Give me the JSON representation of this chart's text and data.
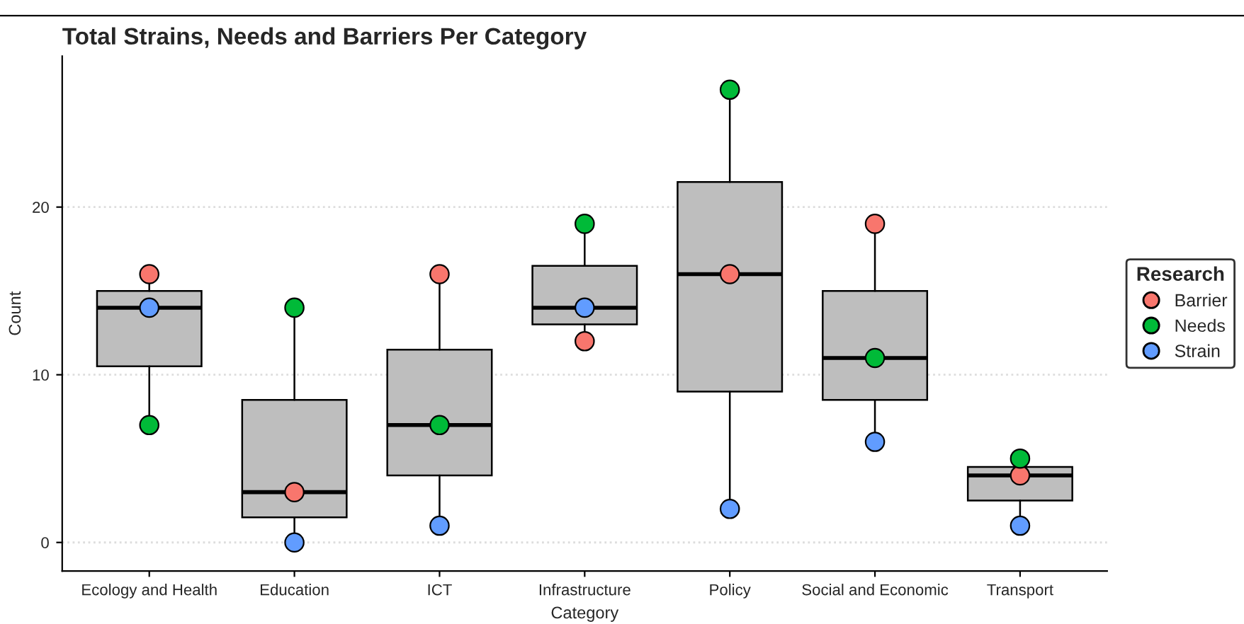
{
  "chart_data": {
    "type": "box",
    "title": "Total Strains, Needs and Barriers Per Category",
    "xlabel": "Category",
    "ylabel": "Count",
    "legend_title": "Research",
    "legend": "right",
    "grid": "y",
    "marker": "circle",
    "categories": [
      "Ecology and Health",
      "Education",
      "ICT",
      "Infrastructure",
      "Policy",
      "Social and Economic",
      "Transport"
    ],
    "ylim": [
      -1.7,
      29
    ],
    "yticks": [
      0,
      10,
      20
    ],
    "boxes": [
      {
        "low": 7,
        "q1": 10.5,
        "median": 14,
        "q3": 15,
        "high": 16
      },
      {
        "low": 0,
        "q1": 1.5,
        "median": 3,
        "q3": 8.5,
        "high": 14
      },
      {
        "low": 1,
        "q1": 4,
        "median": 7,
        "q3": 11.5,
        "high": 16
      },
      {
        "low": 12,
        "q1": 13,
        "median": 14,
        "q3": 16.5,
        "high": 19
      },
      {
        "low": 2,
        "q1": 9,
        "median": 16,
        "q3": 21.5,
        "high": 27
      },
      {
        "low": 6,
        "q1": 8.5,
        "median": 11,
        "q3": 15,
        "high": 19
      },
      {
        "low": 1,
        "q1": 2.5,
        "median": 4,
        "q3": 4.5,
        "high": 5
      }
    ],
    "series": [
      {
        "type": "scatter",
        "name": "Barrier",
        "color": "#f8766d",
        "x": [
          "Ecology and Health",
          "Education",
          "ICT",
          "Infrastructure",
          "Policy",
          "Social and Economic",
          "Transport"
        ],
        "values": [
          16,
          3,
          16,
          12,
          16,
          19,
          4
        ]
      },
      {
        "type": "scatter",
        "name": "Needs",
        "color": "#00ba38",
        "x": [
          "Ecology and Health",
          "Education",
          "ICT",
          "Infrastructure",
          "Policy",
          "Social and Economic",
          "Transport"
        ],
        "values": [
          7,
          14,
          7,
          19,
          27,
          11,
          5
        ]
      },
      {
        "type": "scatter",
        "name": "Strain",
        "color": "#619cff",
        "x": [
          "Ecology and Health",
          "Education",
          "ICT",
          "Infrastructure",
          "Policy",
          "Social and Economic",
          "Transport"
        ],
        "values": [
          14,
          0,
          1,
          14,
          2,
          6,
          1
        ]
      }
    ]
  }
}
